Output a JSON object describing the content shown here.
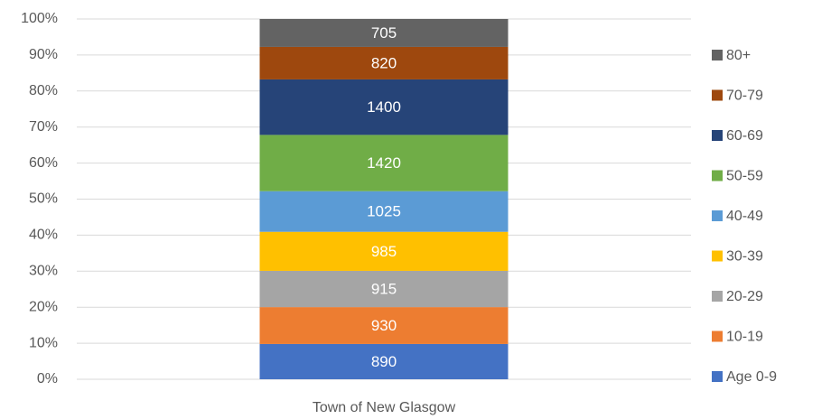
{
  "chart_data": {
    "type": "bar",
    "stacking": "percent",
    "categories": [
      "Town of New Glasgow"
    ],
    "series": [
      {
        "name": "Age 0-9",
        "color": "#4472c4",
        "values": [
          890
        ]
      },
      {
        "name": "10-19",
        "color": "#ed7d31",
        "values": [
          930
        ]
      },
      {
        "name": "20-29",
        "color": "#a5a5a5",
        "values": [
          915
        ]
      },
      {
        "name": "30-39",
        "color": "#ffc000",
        "values": [
          985
        ]
      },
      {
        "name": "40-49",
        "color": "#5b9bd5",
        "values": [
          1025
        ]
      },
      {
        "name": "50-59",
        "color": "#70ad47",
        "values": [
          1420
        ]
      },
      {
        "name": "60-69",
        "color": "#264478",
        "values": [
          1400
        ]
      },
      {
        "name": "70-79",
        "color": "#9e480e",
        "values": [
          820
        ]
      },
      {
        "name": "80+",
        "color": "#636363",
        "values": [
          705
        ]
      }
    ],
    "ylim": [
      0,
      100
    ],
    "yticks": [
      {
        "value": 0,
        "label": "0%"
      },
      {
        "value": 10,
        "label": "10%"
      },
      {
        "value": 20,
        "label": "20%"
      },
      {
        "value": 30,
        "label": "30%"
      },
      {
        "value": 40,
        "label": "40%"
      },
      {
        "value": 50,
        "label": "50%"
      },
      {
        "value": 60,
        "label": "60%"
      },
      {
        "value": 70,
        "label": "70%"
      },
      {
        "value": 80,
        "label": "80%"
      },
      {
        "value": 90,
        "label": "90%"
      },
      {
        "value": 100,
        "label": "100%"
      }
    ],
    "grid": true,
    "legend": "right"
  }
}
